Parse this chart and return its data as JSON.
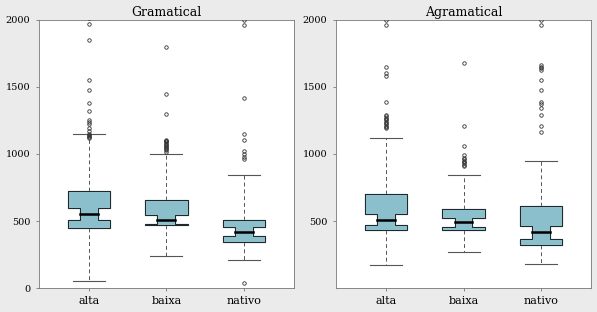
{
  "panels": [
    {
      "title": "Gramatical",
      "groups": [
        "alta",
        "baixa",
        "nativo"
      ],
      "boxes": [
        {
          "group": "alta",
          "q1": 450,
          "median": 555,
          "q3": 720,
          "whisker_low": 50,
          "whisker_high": 1150,
          "notch_low": 510,
          "notch_high": 600,
          "outliers_x": [
            1,
            1,
            1,
            1,
            1,
            1,
            1,
            1,
            1,
            1,
            1,
            1,
            1,
            1,
            1,
            1,
            1
          ],
          "outliers_y": [
            1320,
            1380,
            1480,
            1550,
            1850,
            1970,
            2010,
            1250,
            1240,
            1220,
            1190,
            1170,
            1150,
            1140,
            1130,
            1125,
            1120
          ]
        },
        {
          "group": "baixa",
          "q1": 470,
          "median": 510,
          "q3": 660,
          "whisker_low": 240,
          "whisker_high": 1000,
          "notch_low": 478,
          "notch_high": 542,
          "outliers_x": [
            2,
            2,
            2,
            2,
            2,
            2,
            2,
            2,
            2,
            2,
            2,
            2,
            2,
            2,
            2,
            2
          ],
          "outliers_y": [
            1300,
            1450,
            1800,
            1100,
            1098,
            1096,
            1094,
            1082,
            1074,
            1066,
            1058,
            1050,
            1042,
            1034,
            1026,
            1018
          ]
        },
        {
          "group": "nativo",
          "q1": 340,
          "median": 420,
          "q3": 510,
          "whisker_low": 210,
          "whisker_high": 840,
          "notch_low": 388,
          "notch_high": 452,
          "outliers_x": [
            3,
            3,
            3,
            3,
            3,
            3,
            3,
            3,
            3,
            3
          ],
          "outliers_y": [
            960,
            980,
            1000,
            1020,
            1100,
            1150,
            1420,
            1960,
            2000,
            40
          ]
        }
      ],
      "ylim": [
        0,
        2000
      ],
      "yticks": [
        0,
        500,
        1000,
        1500,
        2000
      ],
      "yticklabels": [
        "0",
        "500",
        "1000",
        "1500",
        "2000"
      ]
    },
    {
      "title": "Agramatical",
      "groups": [
        "alta",
        "baixa",
        "nativo"
      ],
      "boxes": [
        {
          "group": "alta",
          "q1": 430,
          "median": 510,
          "q3": 700,
          "whisker_low": 170,
          "whisker_high": 1120,
          "notch_low": 468,
          "notch_high": 552,
          "outliers_x": [
            1,
            1,
            1,
            1,
            1,
            1,
            1,
            1,
            1,
            1,
            1,
            1,
            1,
            1,
            1,
            1,
            1
          ],
          "outliers_y": [
            1650,
            1600,
            1580,
            1390,
            1290,
            1280,
            1270,
            1260,
            1250,
            1240,
            1230,
            1220,
            1210,
            1200,
            1190,
            1960,
            2000
          ]
        },
        {
          "group": "baixa",
          "q1": 430,
          "median": 490,
          "q3": 590,
          "whisker_low": 270,
          "whisker_high": 840,
          "notch_low": 458,
          "notch_high": 522,
          "outliers_x": [
            2,
            2,
            2,
            2,
            2,
            2,
            2,
            2,
            2,
            2,
            2
          ],
          "outliers_y": [
            1680,
            1210,
            1060,
            990,
            970,
            960,
            950,
            940,
            930,
            920,
            910
          ]
        },
        {
          "group": "nativo",
          "q1": 320,
          "median": 415,
          "q3": 610,
          "whisker_low": 180,
          "whisker_high": 950,
          "notch_low": 368,
          "notch_high": 462,
          "outliers_x": [
            3,
            3,
            3,
            3,
            3,
            3,
            3,
            3,
            3,
            3,
            3,
            3,
            3,
            3
          ],
          "outliers_y": [
            1660,
            1650,
            1640,
            1628,
            1550,
            1480,
            1390,
            1370,
            1340,
            1290,
            1210,
            1160,
            2000,
            1960
          ]
        }
      ],
      "ylim": [
        0,
        2000
      ],
      "yticks": [
        500,
        1000,
        1500,
        2000
      ],
      "yticklabels": [
        "500",
        "1000",
        "1500",
        "2000"
      ]
    }
  ],
  "box_color": "#8BBFCC",
  "box_edge_color": "#222222",
  "median_color": "#000000",
  "whisker_color": "#555555",
  "outlier_color": "#333333",
  "background_color": "#ebebeb",
  "panel_bg": "#ffffff",
  "title_fontsize": 9,
  "tick_fontsize": 7,
  "label_fontsize": 8
}
